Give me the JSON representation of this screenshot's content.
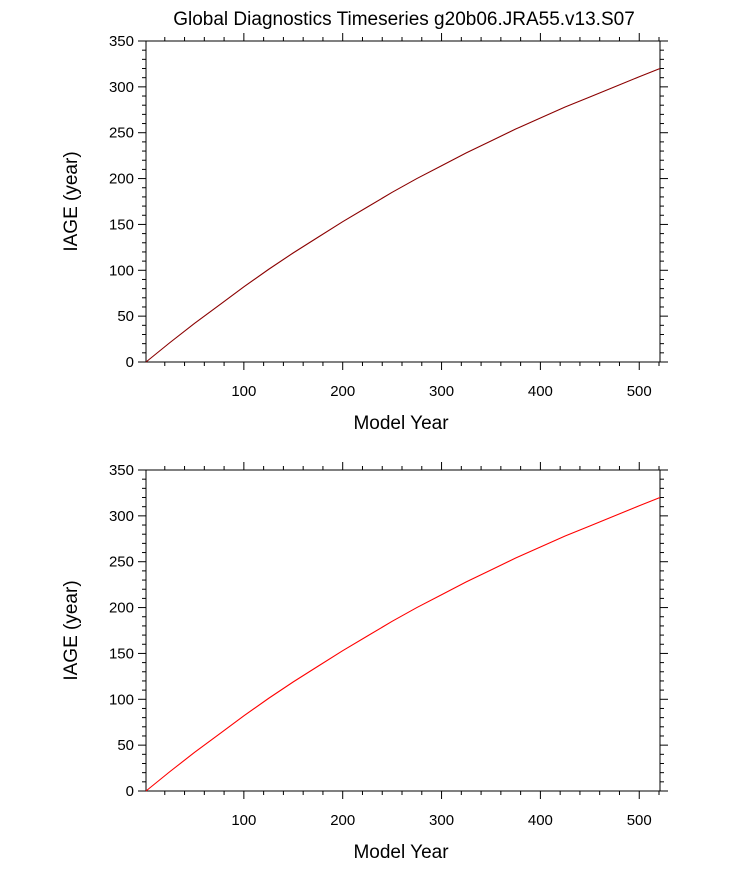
{
  "title": "Global Diagnostics Timeseries g20b06.JRA55.v13.S07",
  "chart_data": [
    {
      "type": "line",
      "xlabel": "Model Year",
      "ylabel": "IAGE (year)",
      "xlim": [
        1,
        521
      ],
      "ylim": [
        0,
        350
      ],
      "xticks": [
        100,
        200,
        300,
        400,
        500
      ],
      "yticks": [
        0,
        50,
        100,
        150,
        200,
        250,
        300,
        350
      ],
      "grid": false,
      "series": [
        {
          "color": "#8b0000",
          "x": [
            1,
            25,
            50,
            75,
            100,
            125,
            150,
            175,
            200,
            225,
            250,
            275,
            300,
            325,
            350,
            375,
            400,
            425,
            450,
            475,
            500,
            521
          ],
          "y": [
            0,
            21,
            42,
            62,
            82,
            101,
            119,
            136,
            153,
            169,
            185,
            200,
            214,
            228,
            241,
            254,
            266,
            278,
            289,
            300,
            311,
            320
          ]
        }
      ]
    },
    {
      "type": "line",
      "xlabel": "Model Year",
      "ylabel": "IAGE (year)",
      "xlim": [
        1,
        521
      ],
      "ylim": [
        0,
        350
      ],
      "xticks": [
        100,
        200,
        300,
        400,
        500
      ],
      "yticks": [
        0,
        50,
        100,
        150,
        200,
        250,
        300,
        350
      ],
      "grid": false,
      "series": [
        {
          "color": "#ff0000",
          "x": [
            1,
            25,
            50,
            75,
            100,
            125,
            150,
            175,
            200,
            225,
            250,
            275,
            300,
            325,
            350,
            375,
            400,
            425,
            450,
            475,
            500,
            521
          ],
          "y": [
            0,
            21,
            42,
            62,
            82,
            101,
            119,
            136,
            153,
            169,
            185,
            200,
            214,
            228,
            241,
            254,
            266,
            278,
            289,
            300,
            311,
            320
          ]
        }
      ]
    }
  ]
}
